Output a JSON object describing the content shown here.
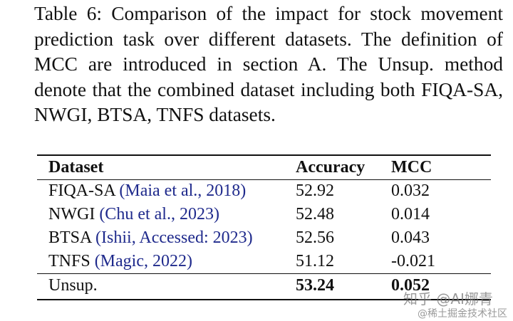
{
  "caption": "Table 6: Comparison of the impact for stock movement prediction task over different datasets. The definition of MCC are introduced in section A. The Unsup. method denote that the combined dataset including both FIQA-SA, NWGI, BTSA, TNFS datasets.",
  "table": {
    "header": [
      "Dataset",
      "Accuracy",
      "MCC"
    ],
    "rows": [
      {
        "dataset": "FIQA-SA",
        "citation": "(Maia et al., 2018)",
        "accuracy": 52.92,
        "mcc": 0.032
      },
      {
        "dataset": "NWGI",
        "citation": "(Chu et al., 2023)",
        "accuracy": 52.48,
        "mcc": 0.014
      },
      {
        "dataset": "BTSA",
        "citation": "(Ishii, Accessed: 2023)",
        "accuracy": 52.56,
        "mcc": 0.043
      },
      {
        "dataset": "TNFS",
        "citation": "(Magic, 2022)",
        "accuracy": 51.12,
        "mcc": -0.021
      }
    ],
    "summary": {
      "dataset": "Unsup.",
      "accuracy": 53.24,
      "mcc": 0.052
    }
  },
  "watermark": [
    "知乎 @AI娜青",
    "@稀土掘金技术社区"
  ]
}
